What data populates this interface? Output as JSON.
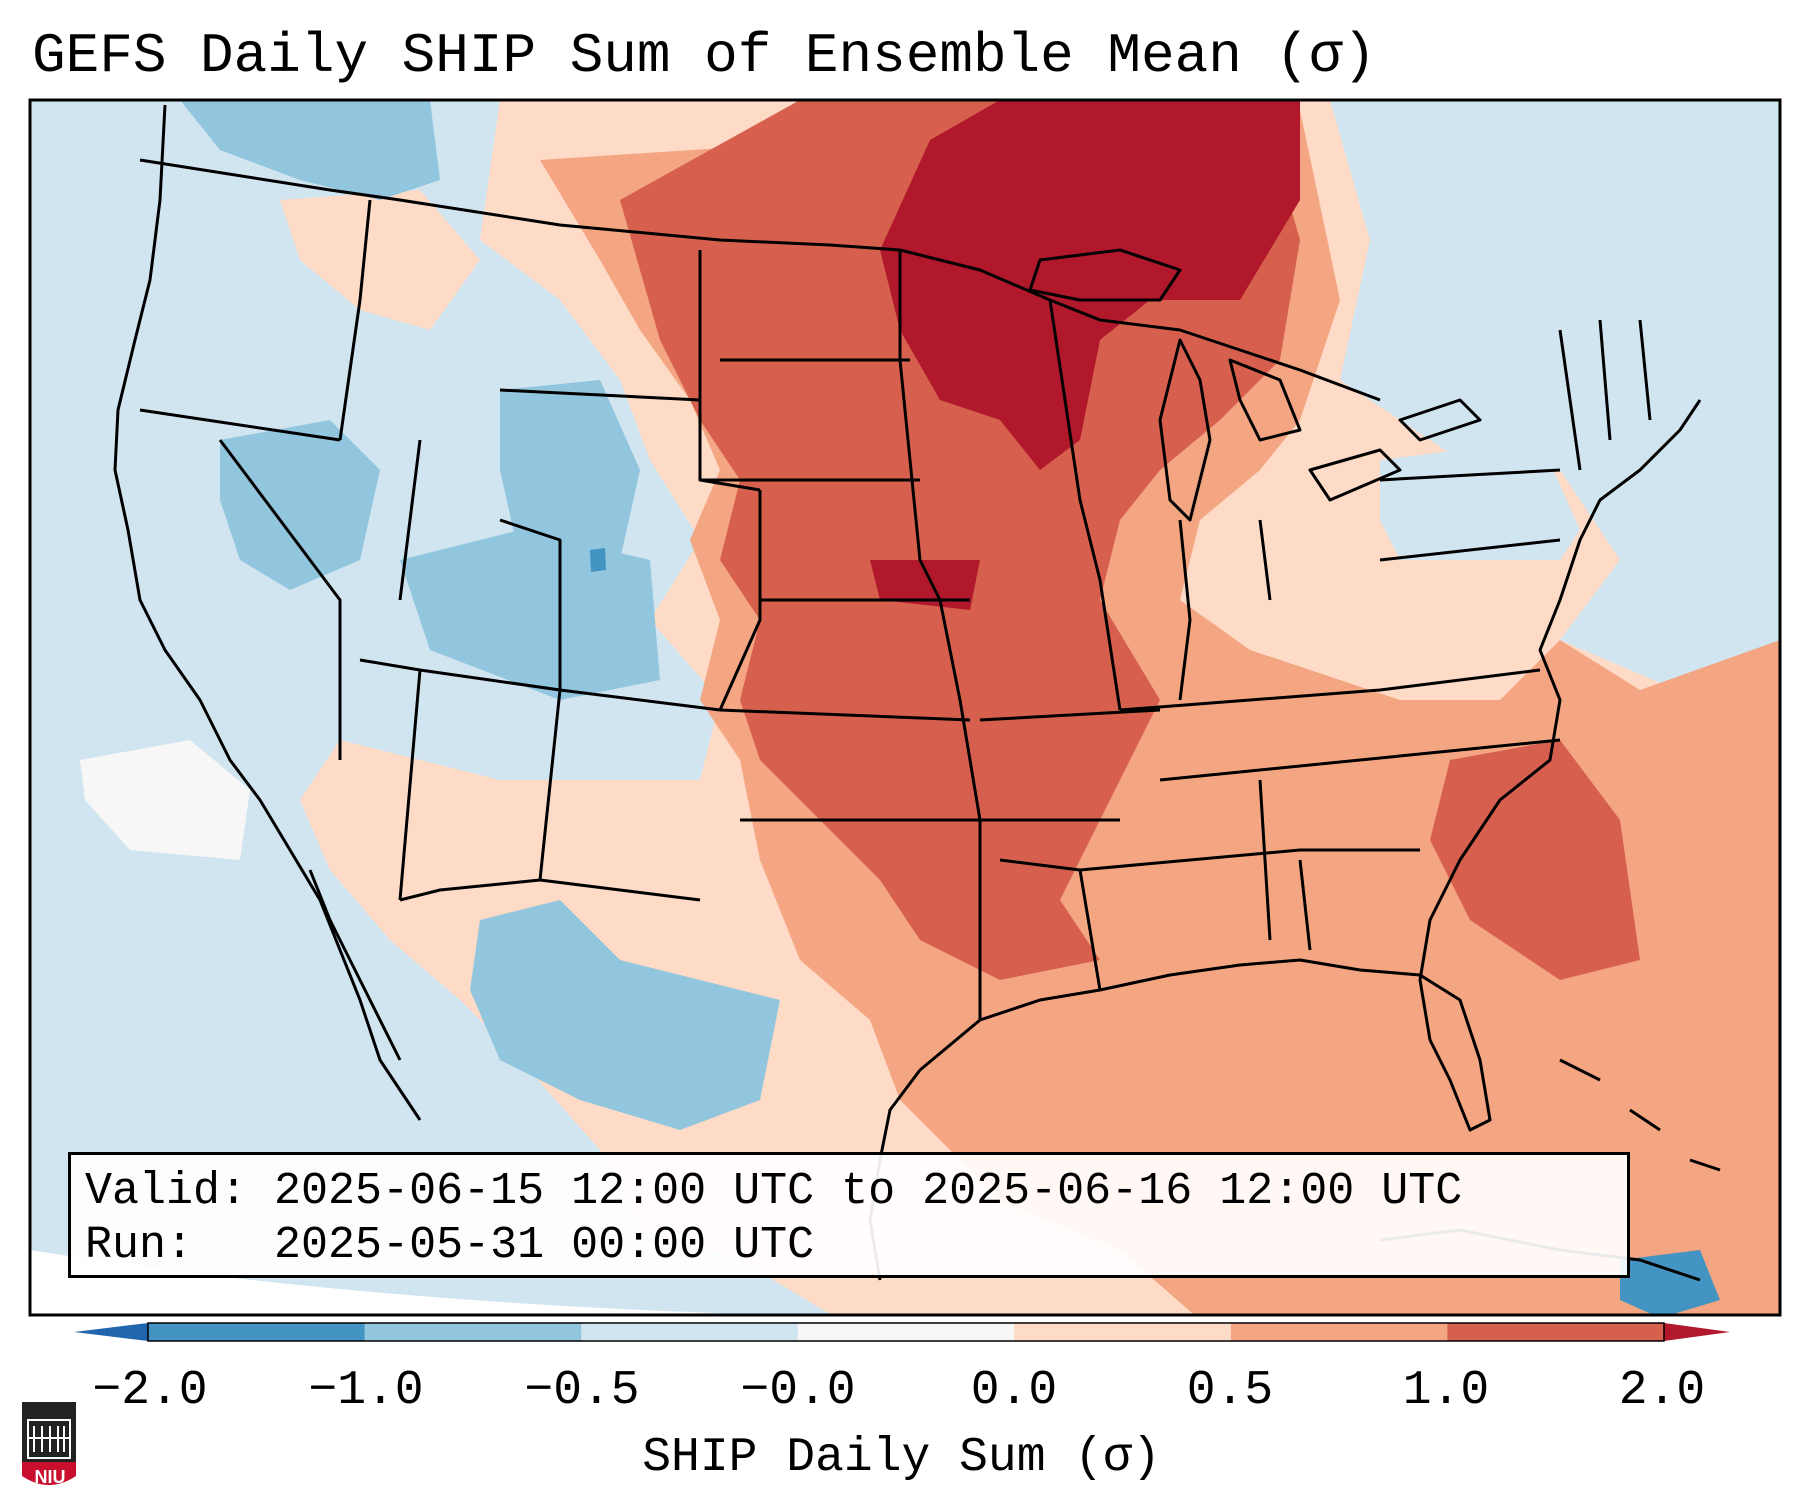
{
  "title": "GEFS Daily SHIP Sum of Ensemble Mean (σ)",
  "info": {
    "valid_label": "Valid:",
    "valid_value": "2025-06-15 12:00 UTC to 2025-06-16 12:00 UTC",
    "run_label": "Run:",
    "run_value": "2025-05-31 00:00 UTC"
  },
  "colorbar": {
    "label": "SHIP Daily Sum (σ)",
    "ticks": [
      "−2.0",
      "−1.0",
      "−0.5",
      "−0.0",
      "0.0",
      "0.5",
      "1.0",
      "2.0"
    ],
    "bins": [
      {
        "range": "< -2.0",
        "color": "#2166ac"
      },
      {
        "range": "-2.0 to -1.0",
        "color": "#4393c3"
      },
      {
        "range": "-1.0 to -0.5",
        "color": "#92c5de"
      },
      {
        "range": "-0.5 to -0.0",
        "color": "#d1e5f0"
      },
      {
        "range": "-0.0 to 0.0",
        "color": "#f7f7f7"
      },
      {
        "range": "0.0 to 0.5",
        "color": "#fddbc7"
      },
      {
        "range": "0.5 to 1.0",
        "color": "#f4a582"
      },
      {
        "range": "1.0 to 2.0",
        "color": "#d6604d"
      },
      {
        "range": "> 2.0",
        "color": "#b2182b"
      }
    ]
  },
  "logo": {
    "text": "NIU",
    "color": "#c8102e"
  }
}
